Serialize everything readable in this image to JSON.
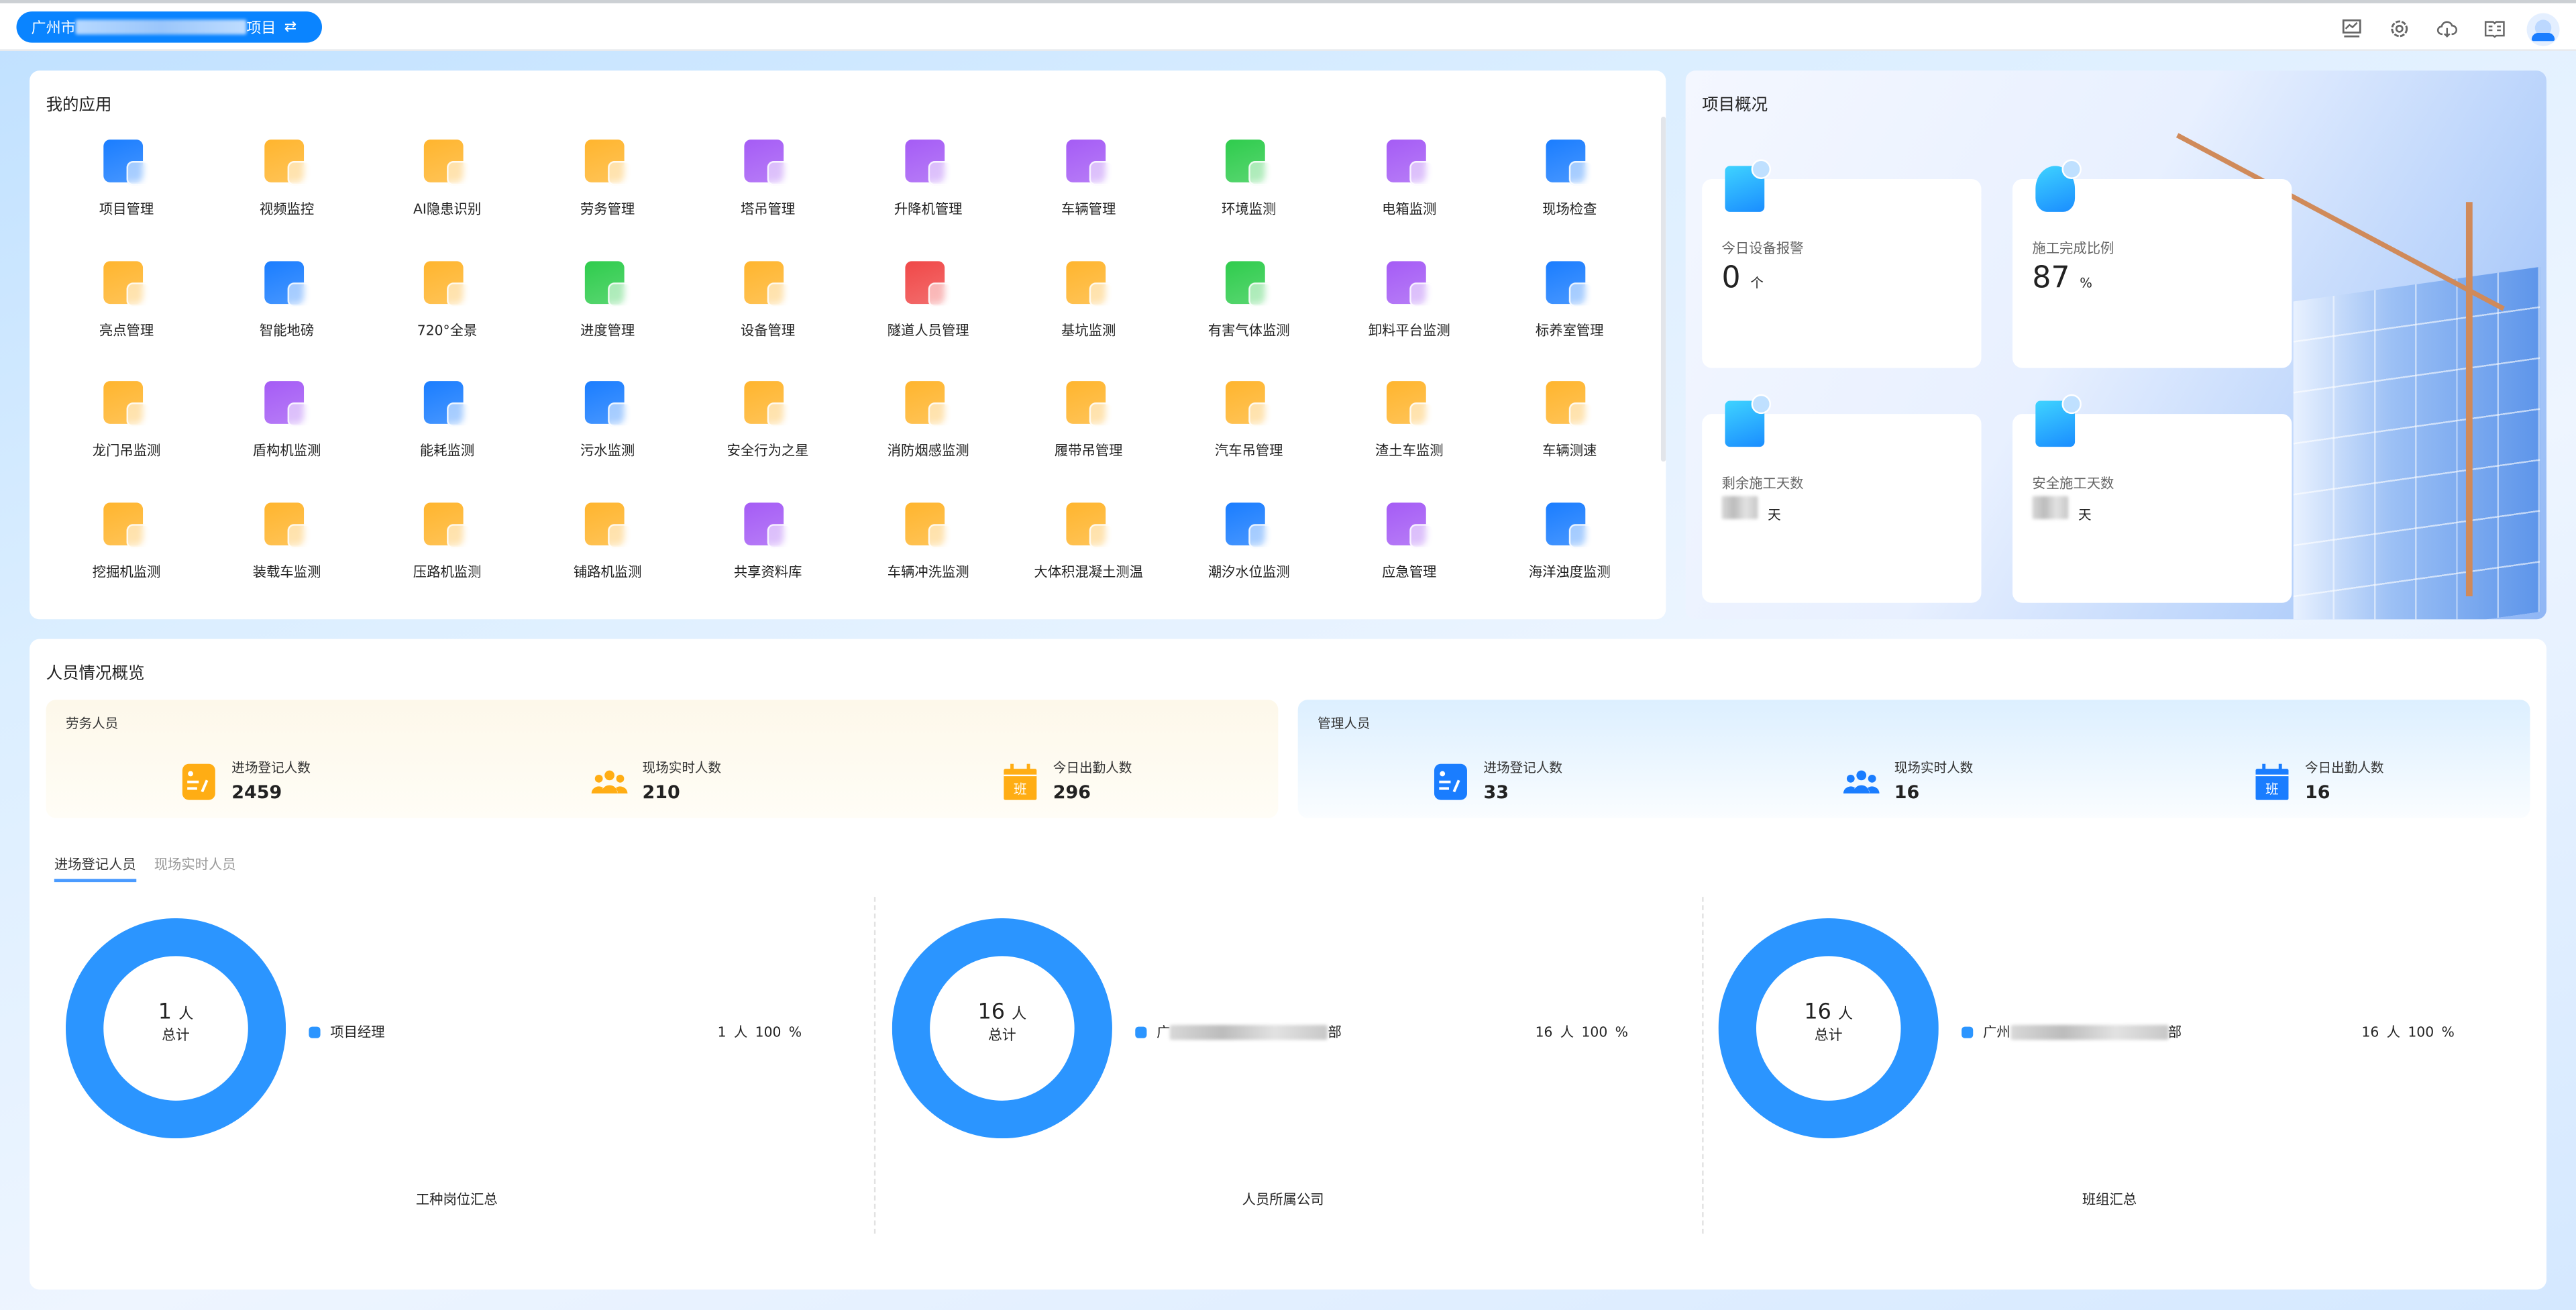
{
  "header": {
    "project_prefix": "广州市",
    "project_suffix": "项目",
    "switch_icon": "swap-icon",
    "icons": [
      "monitor-chart-icon",
      "gear-icon",
      "cloud-download-icon",
      "book-icon",
      "avatar"
    ]
  },
  "apps": {
    "title": "我的应用",
    "items": [
      {
        "label": "项目管理",
        "color": "#1a7dff"
      },
      {
        "label": "视频监控",
        "color": "#ffb52e"
      },
      {
        "label": "AI隐患识别",
        "color": "#ffb52e"
      },
      {
        "label": "劳务管理",
        "color": "#ffb52e"
      },
      {
        "label": "塔吊管理",
        "color": "#a55cf5"
      },
      {
        "label": "升降机管理",
        "color": "#a55cf5"
      },
      {
        "label": "车辆管理",
        "color": "#a55cf5"
      },
      {
        "label": "环境监测",
        "color": "#2fcc4d"
      },
      {
        "label": "电箱监测",
        "color": "#a55cf5"
      },
      {
        "label": "现场检查",
        "color": "#1a7dff"
      },
      {
        "label": "亮点管理",
        "color": "#ffb52e"
      },
      {
        "label": "智能地磅",
        "color": "#1a7dff"
      },
      {
        "label": "720°全景",
        "color": "#ffb52e"
      },
      {
        "label": "进度管理",
        "color": "#2fcc4d"
      },
      {
        "label": "设备管理",
        "color": "#ffb52e"
      },
      {
        "label": "隧道人员管理",
        "color": "#f04848"
      },
      {
        "label": "基坑监测",
        "color": "#ffb52e"
      },
      {
        "label": "有害气体监测",
        "color": "#2fcc4d"
      },
      {
        "label": "卸料平台监测",
        "color": "#a55cf5"
      },
      {
        "label": "标养室管理",
        "color": "#1a7dff"
      },
      {
        "label": "龙门吊监测",
        "color": "#ffb52e"
      },
      {
        "label": "盾构机监测",
        "color": "#a55cf5"
      },
      {
        "label": "能耗监测",
        "color": "#1a7dff"
      },
      {
        "label": "污水监测",
        "color": "#1a7dff"
      },
      {
        "label": "安全行为之星",
        "color": "#ffb52e"
      },
      {
        "label": "消防烟感监测",
        "color": "#ffb52e"
      },
      {
        "label": "履带吊管理",
        "color": "#ffb52e"
      },
      {
        "label": "汽车吊管理",
        "color": "#ffb52e"
      },
      {
        "label": "渣土车监测",
        "color": "#ffb52e"
      },
      {
        "label": "车辆测速",
        "color": "#ffb52e"
      },
      {
        "label": "挖掘机监测",
        "color": "#ffb52e"
      },
      {
        "label": "装载车监测",
        "color": "#ffb52e"
      },
      {
        "label": "压路机监测",
        "color": "#ffb52e"
      },
      {
        "label": "铺路机监测",
        "color": "#ffb52e"
      },
      {
        "label": "共享资料库",
        "color": "#a55cf5"
      },
      {
        "label": "车辆冲洗监测",
        "color": "#ffb52e"
      },
      {
        "label": "大体积混凝土测温",
        "color": "#ffb52e"
      },
      {
        "label": "潮汐水位监测",
        "color": "#1a7dff"
      },
      {
        "label": "应急管理",
        "color": "#a55cf5"
      },
      {
        "label": "海洋浊度监测",
        "color": "#1a7dff"
      }
    ]
  },
  "overview": {
    "title": "项目概况",
    "cards": [
      {
        "label": "今日设备报警",
        "value": "0",
        "unit": "个",
        "icon": "device-alarm-icon"
      },
      {
        "label": "施工完成比例",
        "value": "87",
        "unit": "%",
        "icon": "star-check-icon"
      },
      {
        "label": "剩余施工天数",
        "value": "",
        "unit": "天",
        "icon": "calendar-hourglass-icon"
      },
      {
        "label": "安全施工天数",
        "value": "",
        "unit": "天",
        "icon": "calendar-clock-icon"
      }
    ]
  },
  "people": {
    "title": "人员情况概览",
    "labor": {
      "title": "劳务人员",
      "color": "#ffad14",
      "stats": [
        {
          "label": "进场登记人数",
          "value": "2459",
          "icon": "register-icon"
        },
        {
          "label": "现场实时人数",
          "value": "210",
          "icon": "group-icon"
        },
        {
          "label": "今日出勤人数",
          "value": "296",
          "icon": "calendar-shift-icon",
          "badge": "班"
        }
      ]
    },
    "management": {
      "title": "管理人员",
      "color": "#1a7dff",
      "stats": [
        {
          "label": "进场登记人数",
          "value": "33",
          "icon": "register-icon"
        },
        {
          "label": "现场实时人数",
          "value": "16",
          "icon": "group-icon"
        },
        {
          "label": "今日出勤人数",
          "value": "16",
          "icon": "calendar-shift-icon",
          "badge": "班"
        }
      ]
    },
    "tabs": [
      {
        "label": "进场登记人员",
        "active": true
      },
      {
        "label": "现场实时人员",
        "active": false
      }
    ],
    "donut_color": "#2b95ff",
    "charts": [
      {
        "caption": "工种岗位汇总",
        "total": "1",
        "total_unit": "人",
        "total_label": "总计",
        "legend": [
          {
            "label": "项目经理",
            "count": "1 人",
            "percent": "100 %",
            "value": 1
          }
        ]
      },
      {
        "caption": "人员所属公司",
        "total": "16",
        "total_unit": "人",
        "total_label": "总计",
        "legend": [
          {
            "label": "广",
            "label_end": "部",
            "count": "16 人",
            "percent": "100 %",
            "value": 16
          }
        ]
      },
      {
        "caption": "班组汇总",
        "total": "16",
        "total_unit": "人",
        "total_label": "总计",
        "legend": [
          {
            "label": "广州",
            "label_end": "部",
            "count": "16 人",
            "percent": "100 %",
            "value": 16
          }
        ]
      }
    ]
  }
}
